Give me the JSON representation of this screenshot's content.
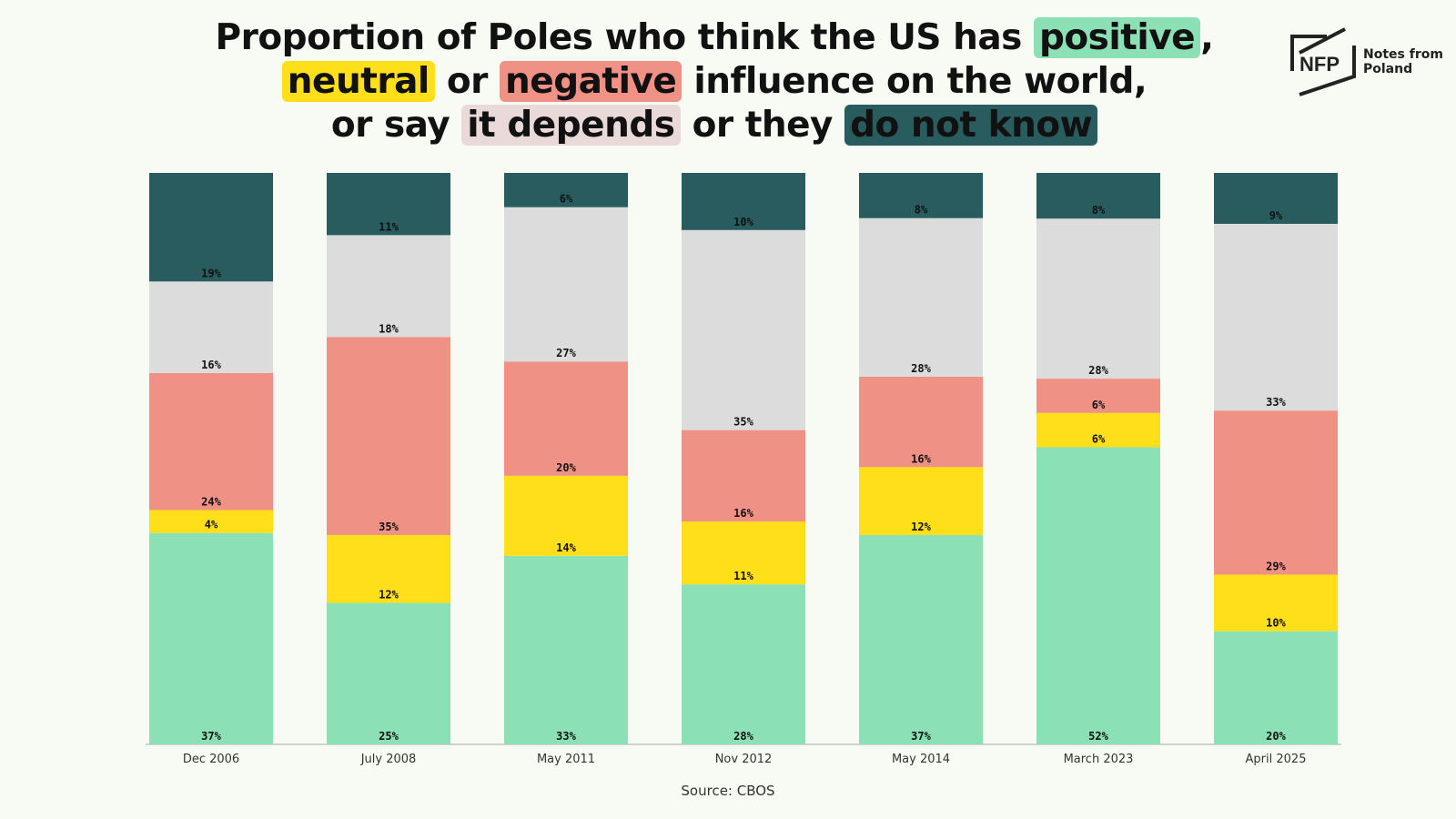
{
  "title": {
    "t1": "Proportion of Poles who think the US has ",
    "positive": "positive",
    "comma1": ",",
    "neutral": "neutral",
    "or1": " or ",
    "negative": "negative",
    "t2": " influence on the world,",
    "t3": "or say ",
    "depends": "it depends",
    "t4": " or they ",
    "dontknow": "do not know"
  },
  "logo": {
    "mark": "NFP",
    "line1": "Notes from",
    "line2": "Poland"
  },
  "source": "Source: CBOS",
  "colors": {
    "positive": "#8be0b6",
    "neutral": "#ffde1a",
    "negative": "#f09186",
    "depends": "#dcdcdc",
    "dontknow": "#285c5e",
    "depends_highlight": "#ead9d9"
  },
  "chart_data": {
    "type": "bar",
    "stacked": true,
    "categories": [
      "Dec 2006",
      "July 2008",
      "May 2011",
      "Nov 2012",
      "May 2014",
      "March 2023",
      "April 2025"
    ],
    "series": [
      {
        "name": "positive",
        "color": "#8be0b6",
        "values": [
          37,
          25,
          33,
          28,
          37,
          52,
          20
        ]
      },
      {
        "name": "neutral",
        "color": "#ffde1a",
        "values": [
          4,
          12,
          14,
          11,
          12,
          6,
          10
        ]
      },
      {
        "name": "negative",
        "color": "#f09186",
        "values": [
          24,
          35,
          20,
          16,
          16,
          6,
          29
        ]
      },
      {
        "name": "it depends",
        "color": "#dcdcdc",
        "values": [
          16,
          18,
          27,
          35,
          28,
          28,
          33
        ]
      },
      {
        "name": "do not know",
        "color": "#285c5e",
        "values": [
          19,
          11,
          6,
          10,
          8,
          8,
          9
        ]
      }
    ],
    "ylim": [
      0,
      100
    ],
    "grid": false,
    "value_suffix": "%"
  }
}
